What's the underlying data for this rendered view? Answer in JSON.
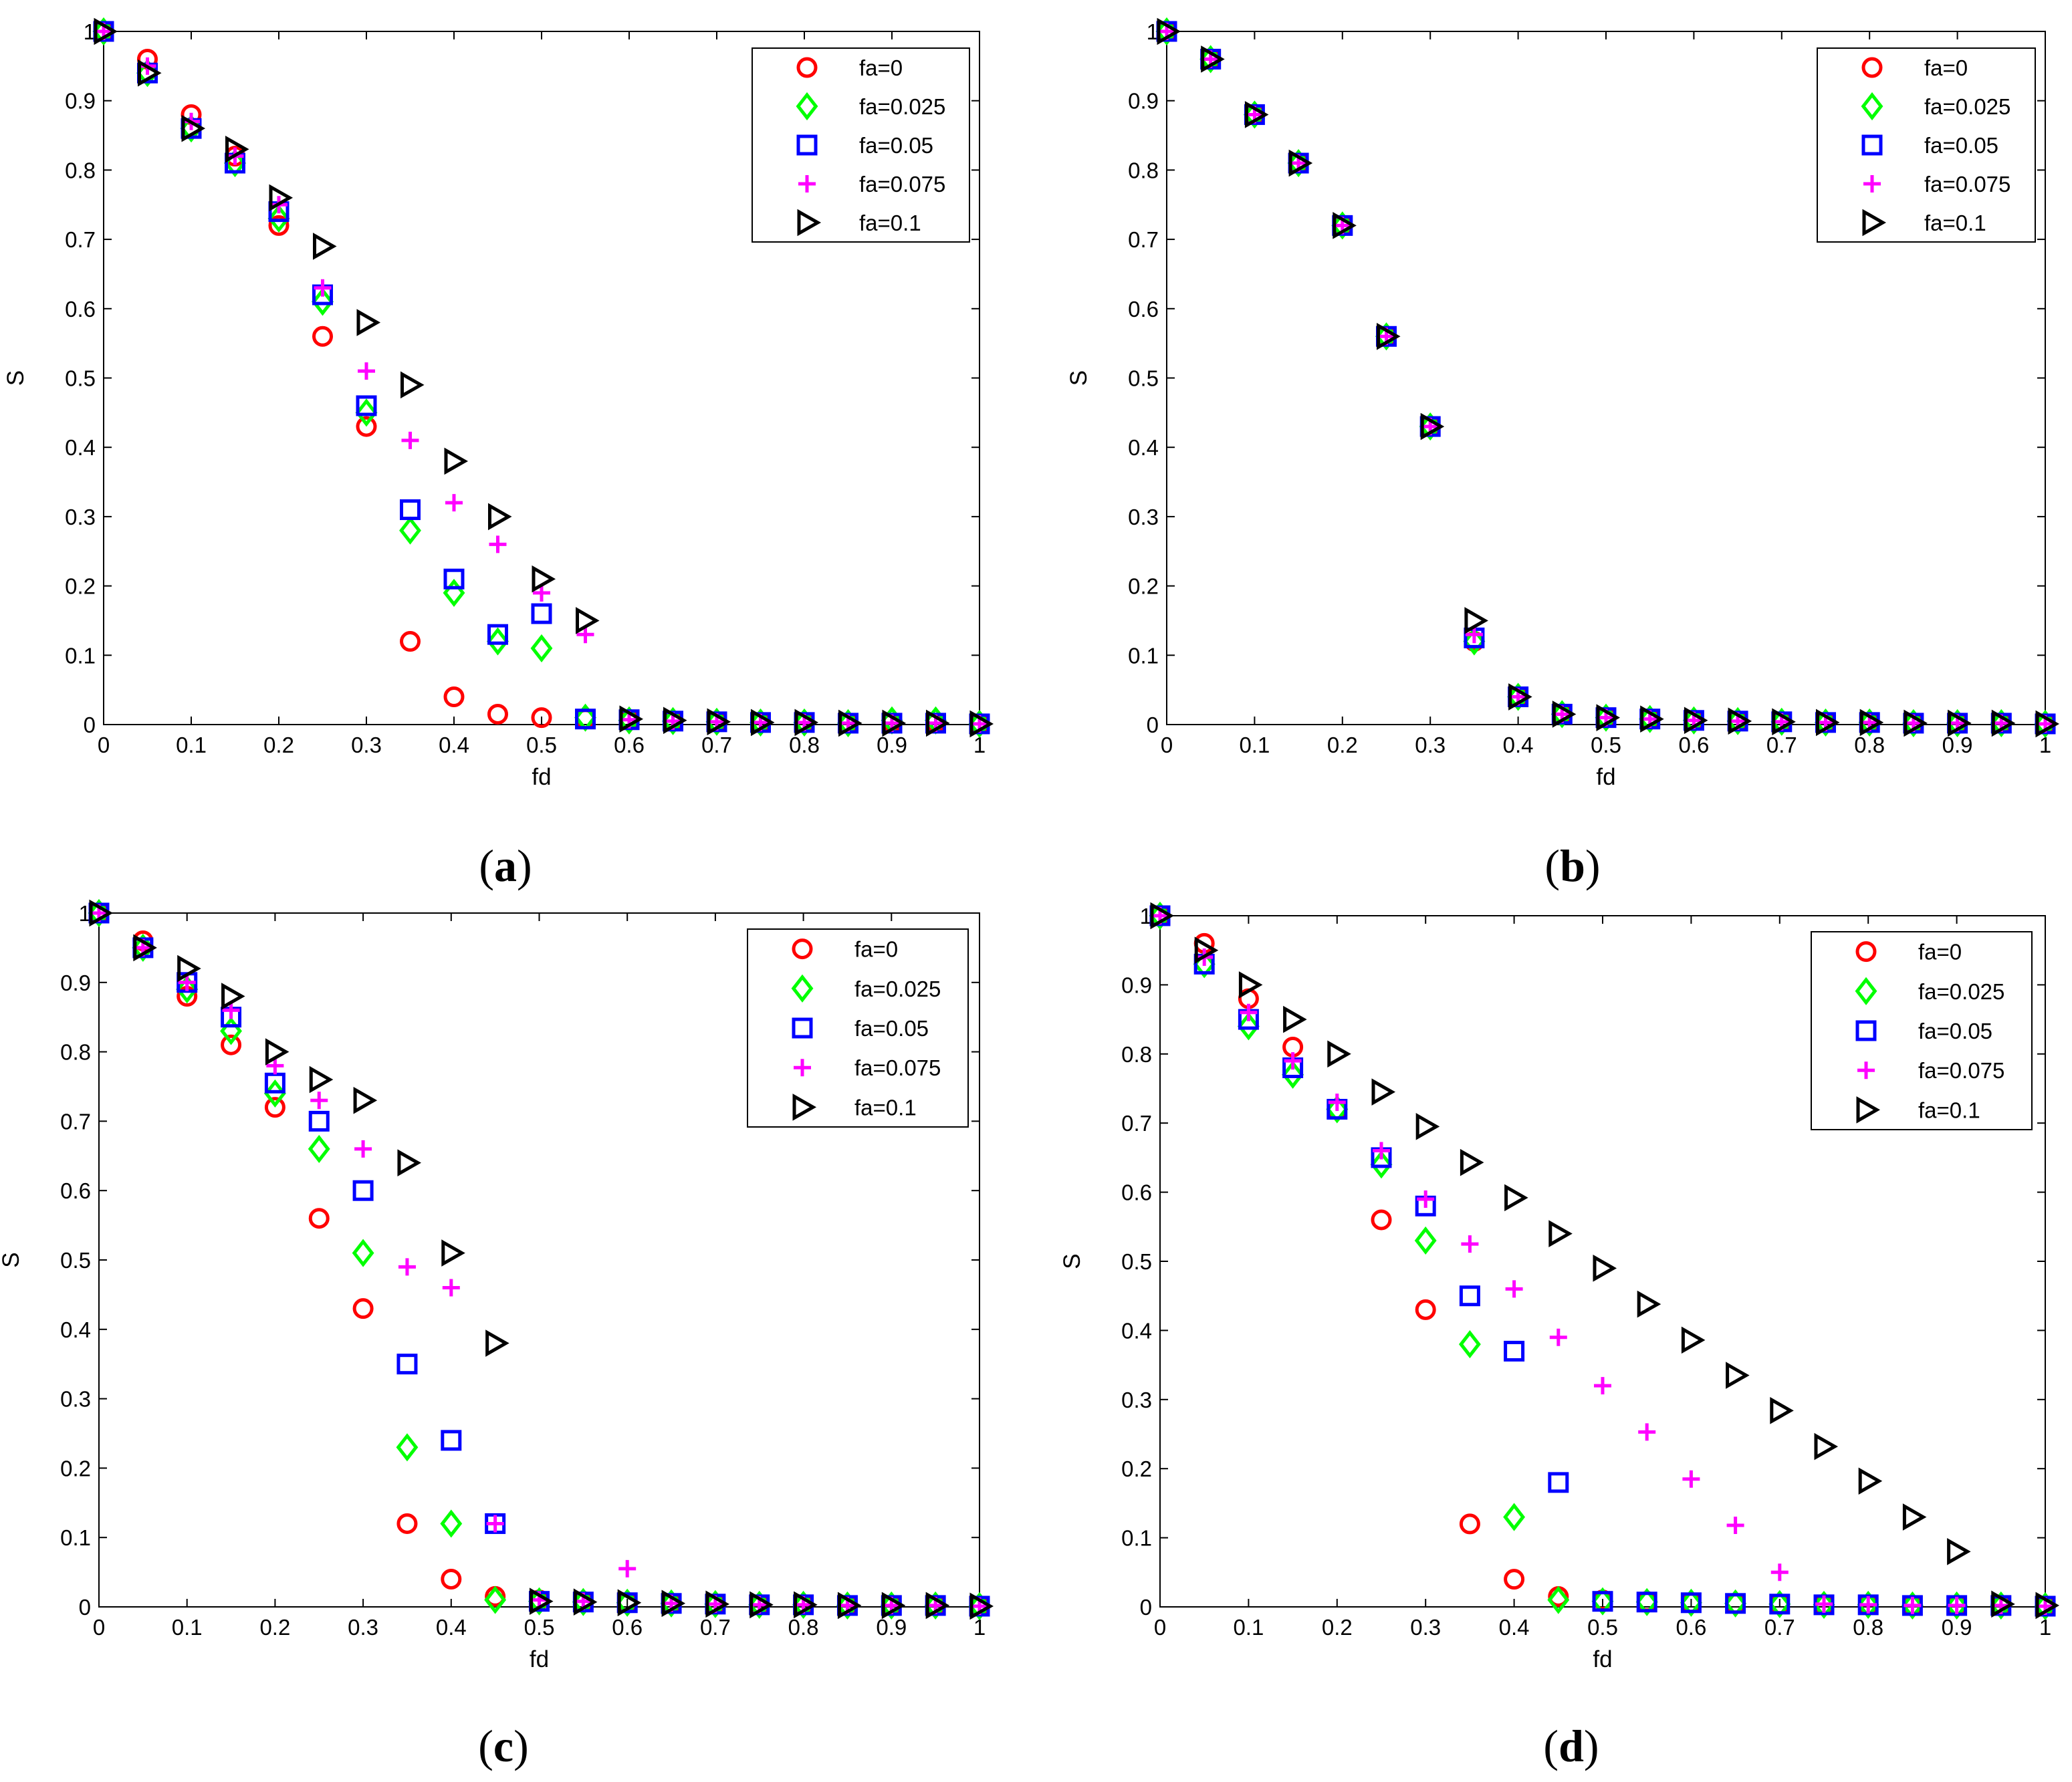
{
  "chart_data": [
    {
      "type": "scatter",
      "panel_label": "a",
      "title": "",
      "xlabel": "fd",
      "ylabel": "S",
      "xlim": [
        0,
        1
      ],
      "ylim": [
        0,
        1
      ],
      "x_ticks": [
        "0",
        "0.1",
        "0.2",
        "0.3",
        "0.4",
        "0.5",
        "0.6",
        "0.7",
        "0.8",
        "0.9",
        "1"
      ],
      "y_ticks": [
        "0",
        "0.1",
        "0.2",
        "0.3",
        "0.4",
        "0.5",
        "0.6",
        "0.7",
        "0.8",
        "0.9",
        "1"
      ],
      "x": [
        0,
        0.05,
        0.1,
        0.15,
        0.2,
        0.25,
        0.3,
        0.35,
        0.4,
        0.45,
        0.5,
        0.55,
        0.6,
        0.65,
        0.7,
        0.75,
        0.8,
        0.85,
        0.9,
        0.95,
        1
      ],
      "legend_position": "top-right",
      "series": [
        {
          "name": "fa=0",
          "marker": "circle",
          "color": "#ff0000",
          "values": [
            1,
            0.96,
            0.88,
            0.82,
            0.72,
            0.56,
            0.43,
            0.12,
            0.04,
            0.015,
            0.01,
            0.008,
            0.006,
            0.005,
            0.004,
            0.003,
            0.003,
            0.002,
            0.002,
            0.002,
            0.001
          ]
        },
        {
          "name": "fa=0.025",
          "marker": "diamond",
          "color": "#00ff00",
          "values": [
            1,
            0.94,
            0.86,
            0.81,
            0.73,
            0.61,
            0.45,
            0.28,
            0.19,
            0.12,
            0.11,
            0.01,
            0.006,
            0.005,
            0.004,
            0.003,
            0.003,
            0.002,
            0.006,
            0.006,
            0.001
          ]
        },
        {
          "name": "fa=0.05",
          "marker": "square",
          "color": "#0000ff",
          "values": [
            1,
            0.94,
            0.86,
            0.81,
            0.74,
            0.62,
            0.46,
            0.31,
            0.21,
            0.13,
            0.16,
            0.008,
            0.007,
            0.005,
            0.004,
            0.003,
            0.003,
            0.002,
            0.002,
            0.002,
            0.001
          ]
        },
        {
          "name": "fa=0.075",
          "marker": "plus",
          "color": "#ff00ff",
          "values": [
            1,
            0.95,
            0.87,
            0.82,
            0.75,
            0.63,
            0.51,
            0.41,
            0.32,
            0.26,
            0.19,
            0.13,
            0.007,
            0.005,
            0.004,
            0.003,
            0.003,
            0.002,
            0.002,
            0.002,
            0.001
          ]
        },
        {
          "name": "fa=0.1",
          "marker": "triangle-right",
          "color": "#000000",
          "values": [
            1,
            0.94,
            0.86,
            0.83,
            0.76,
            0.69,
            0.58,
            0.49,
            0.38,
            0.3,
            0.21,
            0.15,
            0.008,
            0.006,
            0.004,
            0.003,
            0.003,
            0.002,
            0.002,
            0.002,
            0.001
          ]
        }
      ]
    },
    {
      "type": "scatter",
      "panel_label": "b",
      "title": "",
      "xlabel": "fd",
      "ylabel": "S",
      "xlim": [
        0,
        1
      ],
      "ylim": [
        0,
        1
      ],
      "x_ticks": [
        "0",
        "0.1",
        "0.2",
        "0.3",
        "0.4",
        "0.5",
        "0.6",
        "0.7",
        "0.8",
        "0.9",
        "1"
      ],
      "y_ticks": [
        "0",
        "0.1",
        "0.2",
        "0.3",
        "0.4",
        "0.5",
        "0.6",
        "0.7",
        "0.8",
        "0.9",
        "1"
      ],
      "x": [
        0,
        0.05,
        0.1,
        0.15,
        0.2,
        0.25,
        0.3,
        0.35,
        0.4,
        0.45,
        0.5,
        0.55,
        0.6,
        0.65,
        0.7,
        0.75,
        0.8,
        0.85,
        0.9,
        0.95,
        1
      ],
      "legend_position": "top-right",
      "series": [
        {
          "name": "fa=0",
          "marker": "circle",
          "color": "#ff0000",
          "values": [
            1,
            0.96,
            0.88,
            0.81,
            0.72,
            0.56,
            0.43,
            0.12,
            0.04,
            0.015,
            0.01,
            0.008,
            0.006,
            0.005,
            0.004,
            0.003,
            0.003,
            0.002,
            0.002,
            0.002,
            0.001
          ]
        },
        {
          "name": "fa=0.025",
          "marker": "diamond",
          "color": "#00ff00",
          "values": [
            1,
            0.96,
            0.88,
            0.81,
            0.72,
            0.56,
            0.43,
            0.12,
            0.04,
            0.015,
            0.01,
            0.008,
            0.006,
            0.005,
            0.004,
            0.003,
            0.003,
            0.002,
            0.002,
            0.002,
            0.001
          ]
        },
        {
          "name": "fa=0.05",
          "marker": "square",
          "color": "#0000ff",
          "values": [
            1,
            0.96,
            0.88,
            0.81,
            0.72,
            0.56,
            0.43,
            0.125,
            0.04,
            0.015,
            0.01,
            0.008,
            0.006,
            0.005,
            0.004,
            0.003,
            0.003,
            0.002,
            0.002,
            0.002,
            0.001
          ]
        },
        {
          "name": "fa=0.075",
          "marker": "plus",
          "color": "#ff00ff",
          "values": [
            1,
            0.96,
            0.88,
            0.81,
            0.72,
            0.56,
            0.43,
            0.13,
            0.04,
            0.015,
            0.01,
            0.008,
            0.006,
            0.005,
            0.004,
            0.003,
            0.003,
            0.002,
            0.002,
            0.002,
            0.001
          ]
        },
        {
          "name": "fa=0.1",
          "marker": "triangle-right",
          "color": "#000000",
          "values": [
            1,
            0.96,
            0.88,
            0.81,
            0.72,
            0.56,
            0.43,
            0.15,
            0.04,
            0.015,
            0.01,
            0.008,
            0.006,
            0.005,
            0.004,
            0.003,
            0.003,
            0.002,
            0.002,
            0.002,
            0.001
          ]
        }
      ]
    },
    {
      "type": "scatter",
      "panel_label": "c",
      "title": "",
      "xlabel": "fd",
      "ylabel": "S",
      "xlim": [
        0,
        1
      ],
      "ylim": [
        0,
        1
      ],
      "x_ticks": [
        "0",
        "0.1",
        "0.2",
        "0.3",
        "0.4",
        "0.5",
        "0.6",
        "0.7",
        "0.8",
        "0.9",
        "1"
      ],
      "y_ticks": [
        "0",
        "0.1",
        "0.2",
        "0.3",
        "0.4",
        "0.5",
        "0.6",
        "0.7",
        "0.8",
        "0.9",
        "1"
      ],
      "x": [
        0,
        0.05,
        0.1,
        0.15,
        0.2,
        0.25,
        0.3,
        0.35,
        0.4,
        0.45,
        0.5,
        0.55,
        0.6,
        0.65,
        0.7,
        0.75,
        0.8,
        0.85,
        0.9,
        0.95,
        1
      ],
      "legend_position": "top-right",
      "series": [
        {
          "name": "fa=0",
          "marker": "circle",
          "color": "#ff0000",
          "values": [
            1,
            0.96,
            0.88,
            0.81,
            0.72,
            0.56,
            0.43,
            0.12,
            0.04,
            0.015,
            0.01,
            0.008,
            0.006,
            0.005,
            0.004,
            0.003,
            0.003,
            0.002,
            0.002,
            0.002,
            0.001
          ]
        },
        {
          "name": "fa=0.025",
          "marker": "diamond",
          "color": "#00ff00",
          "values": [
            1,
            0.95,
            0.89,
            0.83,
            0.74,
            0.66,
            0.51,
            0.23,
            0.12,
            0.01,
            0.008,
            0.007,
            0.006,
            0.005,
            0.004,
            0.003,
            0.003,
            0.002,
            0.002,
            0.002,
            0.001
          ]
        },
        {
          "name": "fa=0.05",
          "marker": "square",
          "color": "#0000ff",
          "values": [
            1,
            0.95,
            0.9,
            0.85,
            0.755,
            0.7,
            0.6,
            0.35,
            0.24,
            0.12,
            0.008,
            0.007,
            0.006,
            0.005,
            0.004,
            0.003,
            0.003,
            0.002,
            0.002,
            0.002,
            0.001
          ]
        },
        {
          "name": "fa=0.075",
          "marker": "plus",
          "color": "#ff00ff",
          "values": [
            1,
            0.95,
            0.9,
            0.86,
            0.78,
            0.73,
            0.66,
            0.49,
            0.46,
            0.12,
            0.01,
            0.008,
            0.055,
            0.005,
            0.004,
            0.003,
            0.003,
            0.002,
            0.002,
            0.002,
            0.001
          ]
        },
        {
          "name": "fa=0.1",
          "marker": "triangle-right",
          "color": "#000000",
          "values": [
            1,
            0.95,
            0.92,
            0.88,
            0.8,
            0.76,
            0.73,
            0.64,
            0.51,
            0.38,
            0.008,
            0.007,
            0.006,
            0.005,
            0.004,
            0.003,
            0.003,
            0.002,
            0.002,
            0.002,
            0.001
          ]
        }
      ]
    },
    {
      "type": "scatter",
      "panel_label": "d",
      "title": "",
      "xlabel": "fd",
      "ylabel": "S",
      "xlim": [
        0,
        1
      ],
      "ylim": [
        0,
        1
      ],
      "x_ticks": [
        "0",
        "0.1",
        "0.2",
        "0.3",
        "0.4",
        "0.5",
        "0.6",
        "0.7",
        "0.8",
        "0.9",
        "1"
      ],
      "y_ticks": [
        "0",
        "0.1",
        "0.2",
        "0.3",
        "0.4",
        "0.5",
        "0.6",
        "0.7",
        "0.8",
        "0.9",
        "1"
      ],
      "x": [
        0,
        0.05,
        0.1,
        0.15,
        0.2,
        0.25,
        0.3,
        0.35,
        0.4,
        0.45,
        0.5,
        0.55,
        0.6,
        0.65,
        0.7,
        0.75,
        0.8,
        0.85,
        0.9,
        0.95,
        1
      ],
      "legend_position": "top-right",
      "series": [
        {
          "name": "fa=0",
          "marker": "circle",
          "color": "#ff0000",
          "values": [
            1,
            0.96,
            0.88,
            0.81,
            0.72,
            0.56,
            0.43,
            0.12,
            0.04,
            0.015,
            0.01,
            0.008,
            0.006,
            0.005,
            0.004,
            0.003,
            0.003,
            0.002,
            0.002,
            0.002,
            0.001
          ]
        },
        {
          "name": "fa=0.025",
          "marker": "diamond",
          "color": "#00ff00",
          "values": [
            1,
            0.93,
            0.84,
            0.77,
            0.72,
            0.64,
            0.53,
            0.38,
            0.13,
            0.01,
            0.008,
            0.007,
            0.006,
            0.005,
            0.004,
            0.003,
            0.003,
            0.002,
            0.002,
            0.002,
            0.001
          ]
        },
        {
          "name": "fa=0.05",
          "marker": "square",
          "color": "#0000ff",
          "values": [
            1,
            0.93,
            0.85,
            0.78,
            0.72,
            0.65,
            0.58,
            0.45,
            0.37,
            0.18,
            0.008,
            0.007,
            0.006,
            0.005,
            0.004,
            0.003,
            0.003,
            0.002,
            0.002,
            0.002,
            0.001
          ]
        },
        {
          "name": "fa=0.075",
          "marker": "plus",
          "color": "#ff00ff",
          "values": [
            1,
            0.94,
            0.86,
            0.79,
            0.73,
            0.66,
            0.59,
            0.525,
            0.46,
            0.39,
            0.32,
            0.253,
            0.185,
            0.118,
            0.05,
            0.004,
            0.003,
            0.002,
            0.002,
            0.002,
            0.001
          ]
        },
        {
          "name": "fa=0.1",
          "marker": "triangle-right",
          "color": "#000000",
          "values": [
            1,
            0.95,
            0.9,
            0.85,
            0.8,
            0.745,
            0.695,
            0.643,
            0.592,
            0.54,
            0.49,
            0.438,
            0.386,
            0.335,
            0.284,
            0.232,
            0.182,
            0.13,
            0.08,
            0.004,
            0.002
          ]
        }
      ]
    }
  ]
}
